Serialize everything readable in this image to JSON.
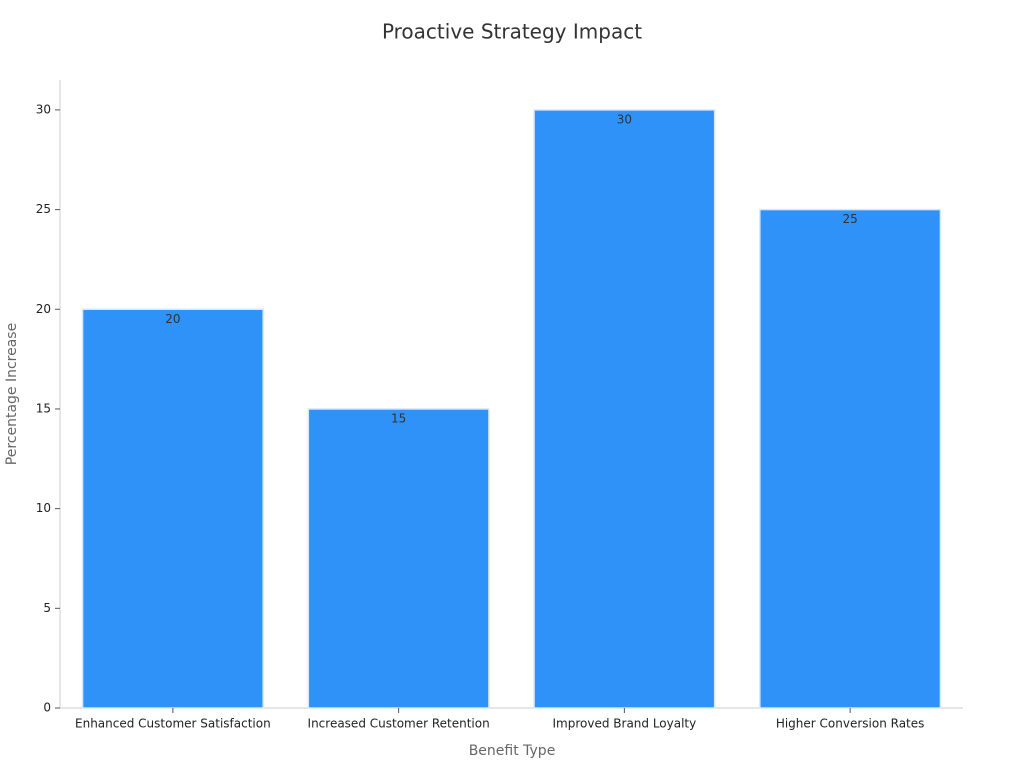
{
  "chart_data": {
    "type": "bar",
    "title": "Proactive Strategy Impact",
    "x_label": "Benefit Type",
    "y_label": "Percentage Increase",
    "categories": [
      "Enhanced Customer Satisfaction",
      "Increased Customer Retention",
      "Improved Brand Loyalty",
      "Higher Conversion Rates"
    ],
    "values": [
      20,
      15,
      30,
      25
    ],
    "color": "#2f92f8",
    "ylim": [
      0,
      31.5
    ],
    "yticks": [
      0,
      5,
      10,
      15,
      20,
      25,
      30
    ],
    "grid": false
  }
}
